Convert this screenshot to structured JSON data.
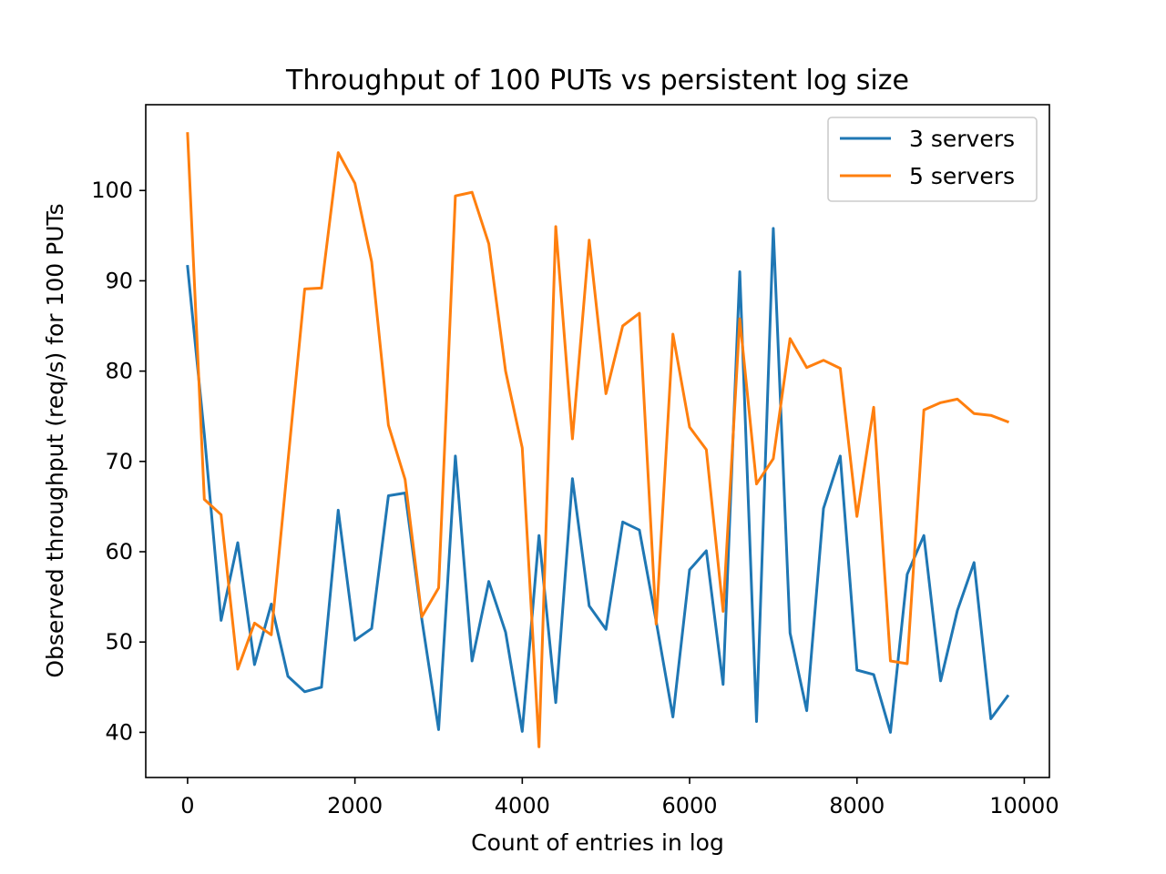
{
  "chart_data": {
    "type": "line",
    "title": "Throughput of 100 PUTs vs persistent log size",
    "xlabel": "Count of entries in log",
    "ylabel": "Observed throughput (req/s) for 100 PUTs",
    "xlim": [
      -500,
      10300
    ],
    "ylim": [
      35,
      109.5
    ],
    "xticks": [
      0,
      2000,
      4000,
      6000,
      8000,
      10000
    ],
    "yticks": [
      40,
      50,
      60,
      70,
      80,
      90,
      100
    ],
    "grid": false,
    "legend_position": "top-right",
    "x": [
      0,
      200,
      400,
      600,
      800,
      1000,
      1200,
      1400,
      1600,
      1800,
      2000,
      2200,
      2400,
      2600,
      2800,
      3000,
      3200,
      3400,
      3600,
      3800,
      4000,
      4200,
      4400,
      4600,
      4800,
      5000,
      5200,
      5400,
      5600,
      5800,
      6000,
      6200,
      6400,
      6600,
      6800,
      7000,
      7200,
      7400,
      7600,
      7800,
      8000,
      8200,
      8400,
      8600,
      8800,
      9000,
      9200,
      9400,
      9600,
      9800
    ],
    "series": [
      {
        "name": "3 servers",
        "color": "#1f77b4",
        "values": [
          91.6,
          73.0,
          52.4,
          61.0,
          47.5,
          54.2,
          46.2,
          44.5,
          45.0,
          64.6,
          50.2,
          51.5,
          66.2,
          66.5,
          52.5,
          40.3,
          70.6,
          47.9,
          56.7,
          51.1,
          40.1,
          61.8,
          43.3,
          68.1,
          54.0,
          51.4,
          63.3,
          62.4,
          52.3,
          41.7,
          58.0,
          60.1,
          45.3,
          91.0,
          41.2,
          95.8,
          51.0,
          42.4,
          64.8,
          70.6,
          46.9,
          46.4,
          40.0,
          57.5,
          61.8,
          45.7,
          53.5,
          58.8,
          41.5,
          44.0
        ]
      },
      {
        "name": "5 servers",
        "color": "#ff7f0e",
        "values": [
          106.3,
          65.8,
          64.1,
          47.0,
          52.1,
          50.8,
          70.0,
          89.1,
          89.2,
          104.2,
          100.8,
          92.1,
          74.0,
          68.0,
          52.8,
          56.0,
          99.4,
          99.8,
          94.1,
          80.0,
          71.5,
          38.4,
          96.0,
          72.5,
          94.5,
          77.5,
          85.0,
          86.4,
          52.0,
          84.1,
          73.8,
          71.3,
          53.4,
          85.8,
          67.5,
          70.3,
          83.6,
          80.4,
          81.2,
          80.3,
          63.9,
          76.0,
          47.9,
          47.6,
          75.7,
          76.5,
          76.9,
          75.3,
          75.1,
          74.4
        ]
      }
    ]
  }
}
